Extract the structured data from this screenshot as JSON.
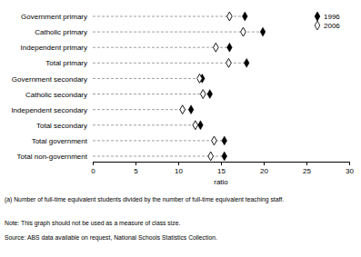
{
  "chart_data": {
    "type": "dot",
    "orientation": "horizontal",
    "categories": [
      "Government primary",
      "Catholic primary",
      "Independent primary",
      "Total primary",
      "Government secondary",
      "Catholic secondary",
      "Independent secondary",
      "Total secondary",
      "Total government",
      "Total non-government"
    ],
    "series": [
      {
        "name": "1996",
        "color": "#000000",
        "marker": "diamond",
        "values": [
          17.8,
          19.9,
          16.0,
          18.0,
          12.8,
          13.7,
          11.5,
          12.6,
          15.4,
          15.4
        ]
      },
      {
        "name": "2006",
        "color": "#ffffff",
        "marker": "diamond-open",
        "values": [
          16.0,
          17.6,
          14.4,
          15.9,
          12.5,
          12.9,
          10.5,
          12.0,
          14.2,
          13.8
        ]
      }
    ],
    "xlim": [
      0,
      30
    ],
    "xticks": [
      0,
      5,
      10,
      15,
      20,
      25,
      30
    ],
    "x_label": "ratio",
    "legend": "top-right",
    "line_style": "dashed",
    "annotations": [
      "(a) Number of full-time equivalent students divided by the number of full-time equivalent teaching staff.",
      "Note: This graph should not be used as a measure of class size.",
      "Source: ABS data available on request, National Schools Statistics Collection."
    ]
  }
}
